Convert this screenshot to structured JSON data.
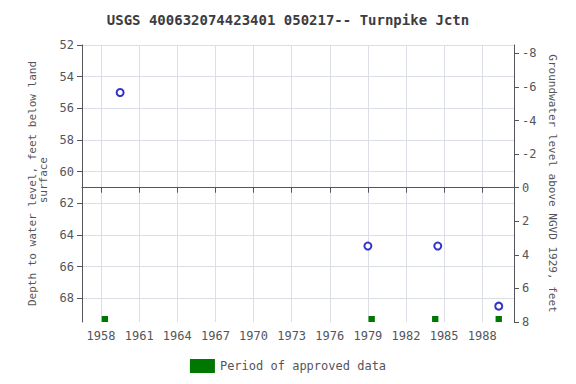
{
  "chart_data": {
    "type": "scatter",
    "title": "USGS 400632074423401 050217-- Turnpike Jctn",
    "xlim": [
      1956.5,
      1990.5
    ],
    "xticks": [
      1958,
      1961,
      1964,
      1967,
      1970,
      1973,
      1976,
      1979,
      1982,
      1985,
      1988
    ],
    "ylim": [
      69.5,
      52
    ],
    "yticks": [
      52,
      54,
      56,
      58,
      60,
      62,
      64,
      66,
      68
    ],
    "y2lim": [
      8,
      -8.5
    ],
    "y2ticks": [
      8,
      6,
      4,
      2,
      0,
      -2,
      -4,
      -6,
      -8
    ],
    "ylabel": "Depth to water level, feet below land\n surface",
    "y2label": "Groundwater level above NGVD 1929, feet",
    "grid": true,
    "legend": "bottom",
    "series": [
      {
        "type": "scatter",
        "color": "#0000bb",
        "marker": "open circle",
        "x": [
          1959.5,
          1979.0,
          1984.5,
          1989.3
        ],
        "values": [
          55.0,
          64.7,
          64.7,
          68.5
        ]
      },
      {
        "type": "bar",
        "name": "Period of approved data",
        "color": "#007700",
        "x": [
          1958.3,
          1979.3,
          1984.3,
          1989.3
        ],
        "widths": [
          0.5,
          0.5,
          0.5,
          0.5
        ]
      }
    ]
  }
}
